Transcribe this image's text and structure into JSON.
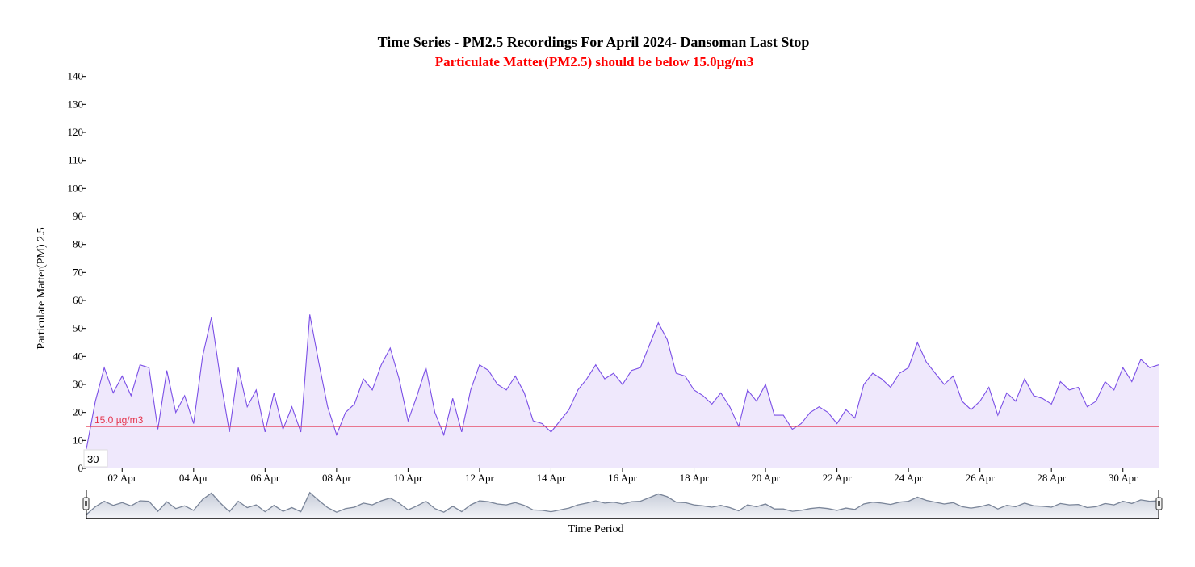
{
  "colors": {
    "line": "#7b4fe6",
    "area_fill": "#efe8fc",
    "threshold": "#e5334b",
    "subtitle": "#ff0000",
    "navigator_line": "#7a8599",
    "navigator_fill_top": "#c6ccd8",
    "navigator_fill_bottom": "#f2f3f7"
  },
  "focus_value": "30",
  "chart_data": {
    "type": "area",
    "title": "Time Series - PM2.5 Recordings For April 2024- Dansoman Last Stop",
    "subtitle": "Particulate Matter(PM2.5) should be below 15.0µg/m3",
    "xlabel": "Time Period",
    "ylabel": "Particulate Matter(PM) 2.5",
    "xlim": [
      "2024-04-01",
      "2024-05-01"
    ],
    "ylim": [
      0,
      150
    ],
    "yticks": [
      0,
      10,
      20,
      30,
      40,
      50,
      60,
      70,
      80,
      90,
      100,
      110,
      120,
      130,
      140
    ],
    "xticks": [
      {
        "date": "2024-04-02",
        "label": "02 Apr"
      },
      {
        "date": "2024-04-04",
        "label": "04 Apr"
      },
      {
        "date": "2024-04-06",
        "label": "06 Apr"
      },
      {
        "date": "2024-04-08",
        "label": "08 Apr"
      },
      {
        "date": "2024-04-10",
        "label": "10 Apr"
      },
      {
        "date": "2024-04-12",
        "label": "12 Apr"
      },
      {
        "date": "2024-04-14",
        "label": "14 Apr"
      },
      {
        "date": "2024-04-16",
        "label": "16 Apr"
      },
      {
        "date": "2024-04-18",
        "label": "18 Apr"
      },
      {
        "date": "2024-04-20",
        "label": "20 Apr"
      },
      {
        "date": "2024-04-22",
        "label": "22 Apr"
      },
      {
        "date": "2024-04-24",
        "label": "24 Apr"
      },
      {
        "date": "2024-04-26",
        "label": "26 Apr"
      },
      {
        "date": "2024-04-28",
        "label": "28 Apr"
      },
      {
        "date": "2024-04-30",
        "label": "30 Apr"
      }
    ],
    "threshold": {
      "value": 15.0,
      "label": "15.0 µg/m3"
    },
    "grid": false,
    "has_navigator": true,
    "series": [
      {
        "x": [
          "2024-04-01T00:00",
          "2024-04-01T06:00",
          "2024-04-01T12:00",
          "2024-04-01T18:00",
          "2024-04-02T00:00",
          "2024-04-02T06:00",
          "2024-04-02T12:00",
          "2024-04-02T18:00",
          "2024-04-03T00:00",
          "2024-04-03T06:00",
          "2024-04-03T12:00",
          "2024-04-03T18:00",
          "2024-04-04T00:00",
          "2024-04-04T06:00",
          "2024-04-04T12:00",
          "2024-04-04T18:00",
          "2024-04-05T00:00",
          "2024-04-05T06:00",
          "2024-04-05T12:00",
          "2024-04-05T18:00",
          "2024-04-06T00:00",
          "2024-04-06T06:00",
          "2024-04-06T12:00",
          "2024-04-06T18:00",
          "2024-04-07T00:00",
          "2024-04-07T06:00",
          "2024-04-07T12:00",
          "2024-04-07T18:00",
          "2024-04-08T00:00",
          "2024-04-08T06:00",
          "2024-04-08T12:00",
          "2024-04-08T18:00",
          "2024-04-09T00:00",
          "2024-04-09T06:00",
          "2024-04-09T12:00",
          "2024-04-09T18:00",
          "2024-04-10T00:00",
          "2024-04-10T06:00",
          "2024-04-10T12:00",
          "2024-04-10T18:00",
          "2024-04-11T00:00",
          "2024-04-11T06:00",
          "2024-04-11T12:00",
          "2024-04-11T18:00",
          "2024-04-12T00:00",
          "2024-04-12T06:00",
          "2024-04-12T12:00",
          "2024-04-12T18:00",
          "2024-04-13T00:00",
          "2024-04-13T06:00",
          "2024-04-13T12:00",
          "2024-04-13T18:00",
          "2024-04-14T00:00",
          "2024-04-14T06:00",
          "2024-04-14T12:00",
          "2024-04-14T18:00",
          "2024-04-15T00:00",
          "2024-04-15T06:00",
          "2024-04-15T12:00",
          "2024-04-15T18:00",
          "2024-04-16T00:00",
          "2024-04-16T06:00",
          "2024-04-16T12:00",
          "2024-04-16T18:00",
          "2024-04-17T00:00",
          "2024-04-17T06:00",
          "2024-04-17T12:00",
          "2024-04-17T18:00",
          "2024-04-18T00:00",
          "2024-04-18T06:00",
          "2024-04-18T12:00",
          "2024-04-18T18:00",
          "2024-04-19T00:00",
          "2024-04-19T06:00",
          "2024-04-19T12:00",
          "2024-04-19T18:00",
          "2024-04-20T00:00",
          "2024-04-20T06:00",
          "2024-04-20T12:00",
          "2024-04-20T18:00",
          "2024-04-21T00:00",
          "2024-04-21T06:00",
          "2024-04-21T12:00",
          "2024-04-21T18:00",
          "2024-04-22T00:00",
          "2024-04-22T06:00",
          "2024-04-22T12:00",
          "2024-04-22T18:00",
          "2024-04-23T00:00",
          "2024-04-23T06:00",
          "2024-04-23T12:00",
          "2024-04-23T18:00",
          "2024-04-24T00:00",
          "2024-04-24T06:00",
          "2024-04-24T12:00",
          "2024-04-24T18:00",
          "2024-04-25T00:00",
          "2024-04-25T06:00",
          "2024-04-25T12:00",
          "2024-04-25T18:00",
          "2024-04-26T00:00",
          "2024-04-26T06:00",
          "2024-04-26T12:00",
          "2024-04-26T18:00",
          "2024-04-27T00:00",
          "2024-04-27T06:00",
          "2024-04-27T12:00",
          "2024-04-27T18:00",
          "2024-04-28T00:00",
          "2024-04-28T06:00",
          "2024-04-28T12:00",
          "2024-04-28T18:00",
          "2024-04-29T00:00",
          "2024-04-29T06:00",
          "2024-04-29T12:00",
          "2024-04-29T18:00",
          "2024-04-30T00:00",
          "2024-04-30T06:00",
          "2024-04-30T12:00",
          "2024-04-30T18:00",
          "2024-05-01T00:00"
        ],
        "y": [
          7,
          24,
          36,
          27,
          33,
          26,
          37,
          36,
          14,
          35,
          20,
          26,
          16,
          40,
          54,
          32,
          13,
          36,
          22,
          28,
          13,
          27,
          14,
          22,
          13,
          55,
          38,
          22,
          12,
          20,
          23,
          32,
          28,
          37,
          43,
          32,
          17,
          26,
          36,
          20,
          12,
          25,
          13,
          28,
          37,
          35,
          30,
          28,
          33,
          27,
          17,
          16,
          13,
          17,
          21,
          28,
          32,
          37,
          32,
          34,
          30,
          35,
          36,
          44,
          52,
          46,
          34,
          33,
          28,
          26,
          23,
          27,
          22,
          15,
          28,
          24,
          30,
          19,
          19,
          14,
          16,
          20,
          22,
          20,
          16,
          21,
          18,
          30,
          34,
          32,
          29,
          34,
          36,
          45,
          38,
          34,
          30,
          33,
          24,
          21,
          24,
          29,
          19,
          27,
          24,
          32,
          26,
          25,
          23,
          31,
          28,
          29,
          22,
          24,
          31,
          28,
          36,
          31,
          39,
          36,
          37
        ]
      }
    ]
  }
}
